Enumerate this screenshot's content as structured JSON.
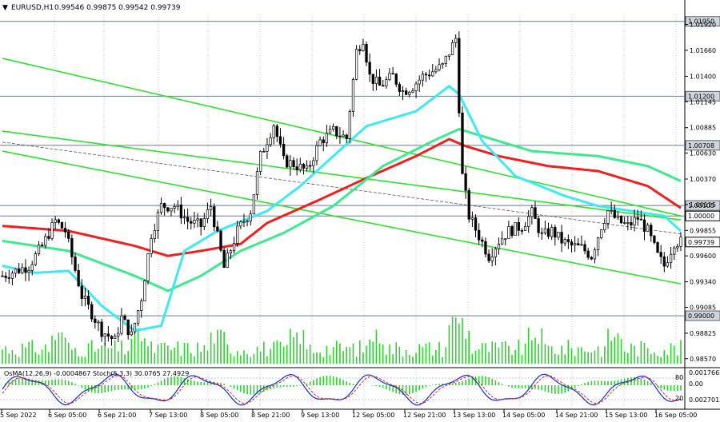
{
  "chart_data": {
    "type": "candlestick",
    "header": {
      "symbol_tf": "EURUSD,H1",
      "ohlc": "0.99546 0.99875 0.99542 0.99739"
    },
    "y_axis": {
      "ticks": [
        "1.01920",
        "1.01660",
        "1.01400",
        "1.01145",
        "1.00885",
        "1.00630",
        "1.00370",
        "1.00115",
        "0.99855",
        "0.99600",
        "0.99340",
        "0.99085",
        "0.98825",
        "0.98570"
      ],
      "ylim": [
        0.9852,
        1.0202
      ]
    },
    "price_levels": [
      {
        "label": "1.01950",
        "value": 1.0195,
        "style": "box-gray"
      },
      {
        "label": "1.01200",
        "value": 1.012,
        "style": "box-gray"
      },
      {
        "label": "1.00708",
        "value": 1.00708,
        "style": "box-gray"
      },
      {
        "label": "1.00105",
        "value": 1.00105,
        "style": "box-gray"
      },
      {
        "label": "1.00000",
        "value": 1.0,
        "style": "box-white"
      },
      {
        "label": "0.99739",
        "value": 0.99739,
        "style": "box-current"
      },
      {
        "label": "0.99000",
        "value": 0.99,
        "style": "box-gray"
      }
    ],
    "x_axis_labels": [
      "5 Sep 2022",
      "6 Sep 05:00",
      "6 Sep 21:00",
      "7 Sep 13:00",
      "8 Sep 05:00",
      "8 Sep 21:00",
      "9 Sep 13:00",
      "12 Sep 05:00",
      "12 Sep 21:00",
      "13 Sep 13:00",
      "14 Sep 05:00",
      "14 Sep 21:00",
      "15 Sep 13:00",
      "16 Sep 05:00"
    ],
    "candle_keypoints": [
      [
        0,
        0.994
      ],
      [
        8,
        0.995
      ],
      [
        12,
        0.997
      ],
      [
        16,
        0.9995
      ],
      [
        19,
        0.9985
      ],
      [
        24,
        0.992
      ],
      [
        30,
        0.9885
      ],
      [
        34,
        0.9875
      ],
      [
        36,
        0.9898
      ],
      [
        39,
        0.988
      ],
      [
        42,
        0.9918
      ],
      [
        45,
        0.9982
      ],
      [
        48,
        1.001
      ],
      [
        52,
        1.001
      ],
      [
        56,
        0.9995
      ],
      [
        60,
        0.999
      ],
      [
        63,
        1.001
      ],
      [
        67,
        0.9948
      ],
      [
        71,
        0.9985
      ],
      [
        75,
        1.0005
      ],
      [
        78,
        1.006
      ],
      [
        82,
        1.0092
      ],
      [
        85,
        1.0055
      ],
      [
        88,
        1.0052
      ],
      [
        92,
        1.0045
      ],
      [
        96,
        1.0075
      ],
      [
        100,
        1.0085
      ],
      [
        104,
        1.0078
      ],
      [
        107,
        1.0165
      ],
      [
        109,
        1.0178
      ],
      [
        111,
        1.014
      ],
      [
        114,
        1.013
      ],
      [
        118,
        1.014
      ],
      [
        121,
        1.0125
      ],
      [
        124,
        1.013
      ],
      [
        127,
        1.014
      ],
      [
        130,
        1.0145
      ],
      [
        133,
        1.015
      ],
      [
        137,
        1.0178
      ],
      [
        139,
        1.004
      ],
      [
        141,
        1.0
      ],
      [
        144,
        0.998
      ],
      [
        147,
        0.996
      ],
      [
        150,
        0.9975
      ],
      [
        153,
        0.9985
      ],
      [
        157,
        0.999
      ],
      [
        160,
        1.0003
      ],
      [
        163,
        0.998
      ],
      [
        166,
        0.9985
      ],
      [
        169,
        0.9975
      ],
      [
        172,
        0.997
      ],
      [
        175,
        0.9968
      ],
      [
        178,
        0.996
      ],
      [
        181,
        0.999
      ],
      [
        183,
        1.0005
      ],
      [
        186,
        0.9995
      ],
      [
        189,
        0.999
      ],
      [
        192,
        0.9998
      ],
      [
        195,
        0.9985
      ],
      [
        198,
        0.996
      ],
      [
        200,
        0.995
      ],
      [
        203,
        0.9974
      ]
    ],
    "indicators": [
      {
        "name": "ema-red",
        "color": "#ee2020",
        "points": [
          [
            0,
            0.999
          ],
          [
            20,
            0.9985
          ],
          [
            40,
            0.997
          ],
          [
            50,
            0.996
          ],
          [
            60,
            0.9965
          ],
          [
            72,
            0.9972
          ],
          [
            80,
            0.9993
          ],
          [
            95,
            1.0015
          ],
          [
            110,
            1.0038
          ],
          [
            125,
            1.006
          ],
          [
            135,
            1.0077
          ],
          [
            140,
            1.007
          ],
          [
            150,
            1.006
          ],
          [
            165,
            1.005
          ],
          [
            180,
            1.0045
          ],
          [
            195,
            1.003
          ],
          [
            205,
            1.0008
          ]
        ]
      },
      {
        "name": "ema-green",
        "color": "#40e890",
        "points": [
          [
            0,
            0.9975
          ],
          [
            20,
            0.9965
          ],
          [
            40,
            0.994
          ],
          [
            50,
            0.9925
          ],
          [
            60,
            0.994
          ],
          [
            72,
            0.9965
          ],
          [
            85,
            0.9983
          ],
          [
            100,
            1.001
          ],
          [
            115,
            1.005
          ],
          [
            130,
            1.0075
          ],
          [
            138,
            1.0087
          ],
          [
            145,
            1.008
          ],
          [
            160,
            1.0065
          ],
          [
            180,
            1.006
          ],
          [
            195,
            1.005
          ],
          [
            205,
            1.0035
          ]
        ]
      },
      {
        "name": "ema-cyan",
        "color": "#40e8f0",
        "points": [
          [
            0,
            0.995
          ],
          [
            10,
            0.9943
          ],
          [
            20,
            0.9945
          ],
          [
            30,
            0.991
          ],
          [
            40,
            0.9885
          ],
          [
            48,
            0.989
          ],
          [
            55,
            0.9965
          ],
          [
            65,
            0.9985
          ],
          [
            80,
            1.0005
          ],
          [
            90,
            1.003
          ],
          [
            100,
            1.006
          ],
          [
            110,
            1.009
          ],
          [
            125,
            1.0105
          ],
          [
            135,
            1.013
          ],
          [
            138,
            1.0122
          ],
          [
            145,
            1.0075
          ],
          [
            155,
            1.004
          ],
          [
            170,
            1.002
          ],
          [
            180,
            1.001
          ],
          [
            190,
            1.0005
          ],
          [
            200,
            1.0
          ],
          [
            205,
            0.9985
          ]
        ]
      }
    ],
    "trend_lines": [
      {
        "color": "#30e030",
        "points": [
          [
            0,
            1.0065
          ],
          [
            205,
            0.9932
          ]
        ]
      },
      {
        "color": "#30e030",
        "points": [
          [
            0,
            1.0085
          ],
          [
            205,
            0.9996
          ]
        ]
      },
      {
        "color": "#30e030",
        "points": [
          [
            0,
            1.0158
          ],
          [
            205,
            1.0
          ]
        ]
      },
      {
        "color": "#555555",
        "dashed": true,
        "points": [
          [
            0,
            1.0074
          ],
          [
            205,
            0.9982
          ]
        ]
      }
    ],
    "sub_panel": {
      "label": "OsMA(12,26,9) -0.0004867  Stoch(5,3,3) 30.0765 27.4929",
      "right_labels": [
        "0.00176626",
        "0.00",
        "0.00270125"
      ],
      "inner_labels": [
        "80",
        "20"
      ]
    }
  }
}
